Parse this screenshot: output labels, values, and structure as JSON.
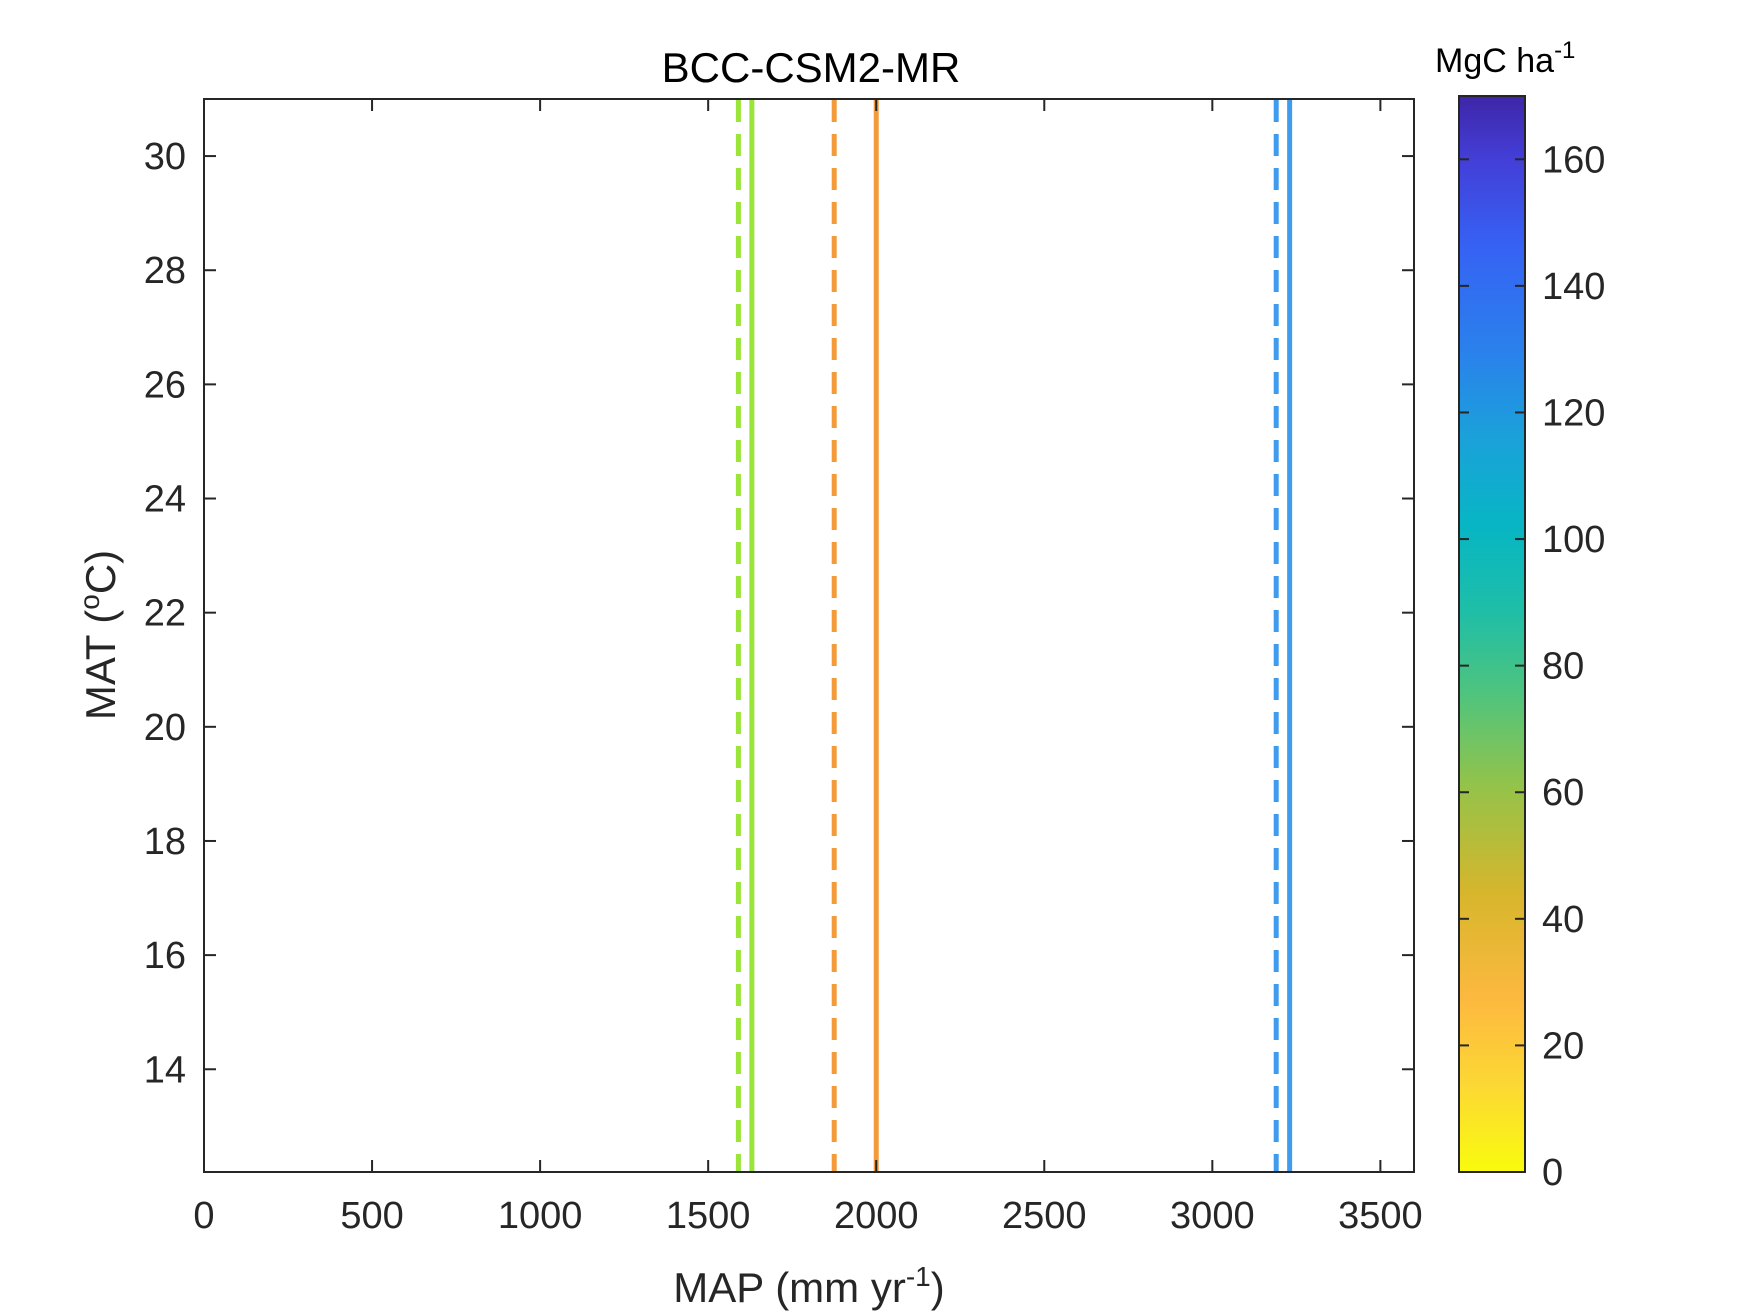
{
  "chart_data": {
    "type": "line",
    "title": "BCC-CSM2-MR",
    "xlabel": {
      "main": "MAP (mm yr",
      "sup": "-1",
      "close": ")"
    },
    "ylabel": {
      "main": "MAT (",
      "sup": "o",
      "close": "C)"
    },
    "xlim": [
      0,
      3600
    ],
    "ylim": [
      12.2,
      31
    ],
    "xticks": [
      0,
      500,
      1000,
      1500,
      2000,
      2500,
      3000,
      3500
    ],
    "yticks": [
      14,
      16,
      18,
      20,
      22,
      24,
      26,
      28,
      30
    ],
    "grid": false,
    "vertical_lines": [
      {
        "x": 1590,
        "color": "#9be43a",
        "style": "dashed"
      },
      {
        "x": 1630,
        "color": "#9be43a",
        "style": "solid"
      },
      {
        "x": 1875,
        "color": "#f39a3a",
        "style": "dashed"
      },
      {
        "x": 2000,
        "color": "#f39a3a",
        "style": "solid"
      },
      {
        "x": 3190,
        "color": "#3f9bee",
        "style": "dashed"
      },
      {
        "x": 3230,
        "color": "#3f9bee",
        "style": "solid"
      }
    ],
    "colorbar": {
      "label": {
        "main": "MgC ha",
        "sup": "-1"
      },
      "range": [
        0,
        170
      ],
      "ticks": [
        0,
        20,
        40,
        60,
        80,
        100,
        120,
        140,
        160
      ],
      "colormap": "parula-reversed"
    }
  }
}
